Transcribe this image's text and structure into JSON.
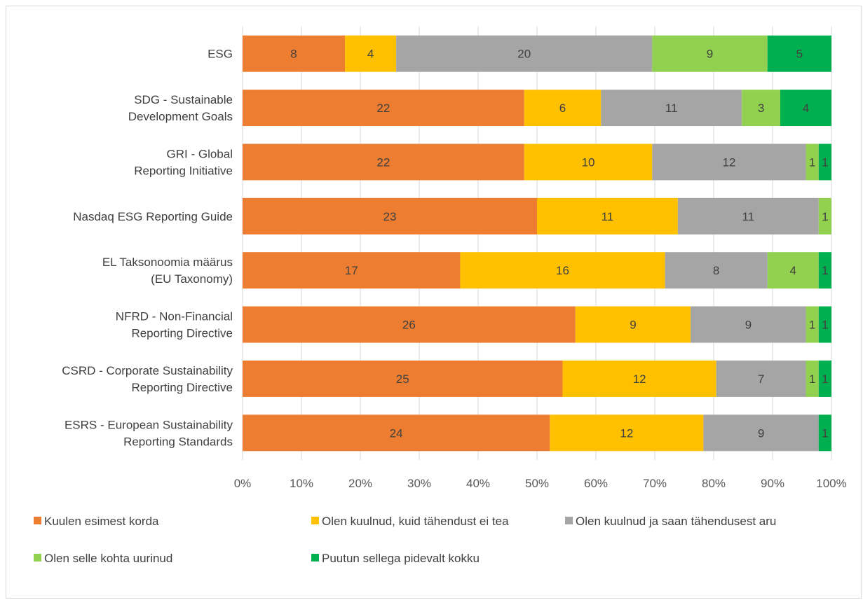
{
  "chart_data": {
    "type": "bar",
    "orientation": "horizontal",
    "stacked": "percent",
    "categories": [
      [
        "ESG"
      ],
      [
        "SDG - Sustainable",
        "Development Goals"
      ],
      [
        "GRI - Global",
        "Reporting Initiative"
      ],
      [
        "Nasdaq ESG Reporting Guide"
      ],
      [
        "EL Taksonoomia määrus",
        "(EU Taxonomy)"
      ],
      [
        "NFRD - Non-Financial",
        "Reporting Directive"
      ],
      [
        "CSRD - Corporate Sustainability",
        "Reporting Directive"
      ],
      [
        "ESRS - European Sustainability",
        "Reporting Standards"
      ]
    ],
    "series": [
      {
        "name": "Kuulen esimest korda",
        "color": "#ED7D31",
        "values": [
          8,
          22,
          22,
          23,
          17,
          26,
          25,
          24
        ]
      },
      {
        "name": "Olen kuulnud, kuid tähendust ei tea",
        "color": "#FFC000",
        "values": [
          4,
          6,
          10,
          11,
          16,
          9,
          12,
          12
        ]
      },
      {
        "name": "Olen kuulnud ja saan tähendusest aru",
        "color": "#A5A5A5",
        "values": [
          20,
          11,
          12,
          11,
          8,
          9,
          7,
          9
        ]
      },
      {
        "name": "Olen selle kohta uurinud",
        "color": "#92D050",
        "values": [
          9,
          3,
          1,
          1,
          4,
          1,
          1,
          0
        ]
      },
      {
        "name": "Puutun sellega pidevalt kokku",
        "color": "#00B050",
        "values": [
          5,
          4,
          1,
          0,
          1,
          1,
          1,
          1
        ]
      }
    ],
    "x_ticks": [
      "0%",
      "10%",
      "20%",
      "30%",
      "40%",
      "50%",
      "60%",
      "70%",
      "80%",
      "90%",
      "100%"
    ],
    "xlim": [
      0,
      100
    ],
    "grid": "vertical",
    "legend_position": "bottom"
  }
}
